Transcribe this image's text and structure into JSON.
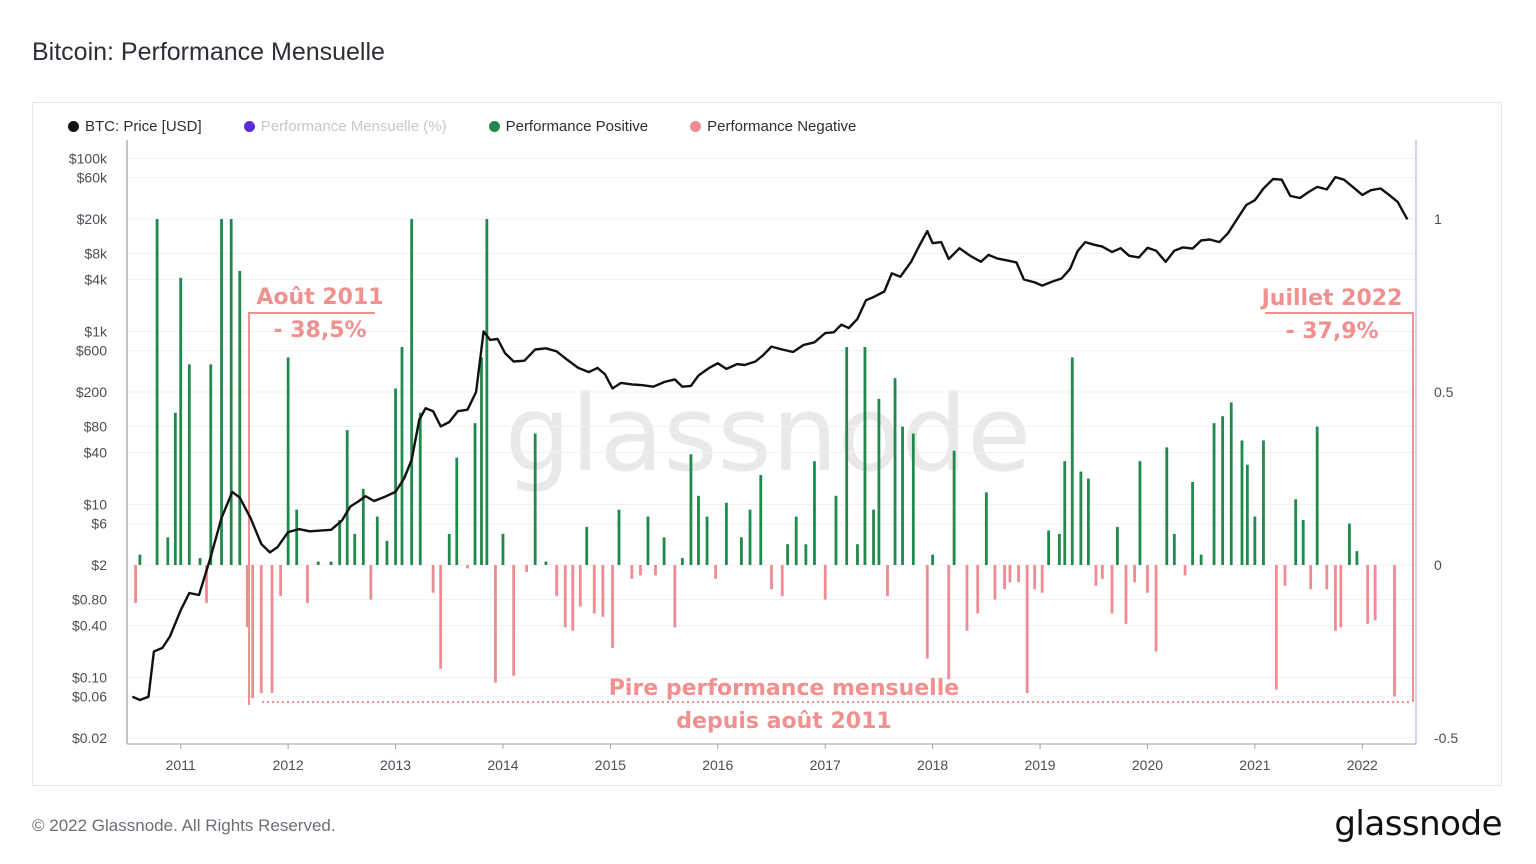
{
  "title": "Bitcoin: Performance Mensuelle",
  "legend": [
    {
      "label": "BTC: Price [USD]",
      "color": "#111111",
      "faded": false
    },
    {
      "label": "Performance Mensuelle (%)",
      "color": "#5b2bd8",
      "faded": true
    },
    {
      "label": "Performance Positive",
      "color": "#1f8a4c",
      "faded": false
    },
    {
      "label": "Performance Negative",
      "color": "#f08a93",
      "faded": false
    }
  ],
  "watermark": "glassnode",
  "footer": {
    "copyright": "© 2022 Glassnode. All Rights Reserved.",
    "logo": "glassnode"
  },
  "annotations": {
    "left_title": "Août 2011",
    "left_value": "- 38,5%",
    "right_title": "Juillet 2022",
    "right_value": "- 37,9%",
    "bottom_line1": "Pire performance mensuelle",
    "bottom_line2": "depuis août  2011",
    "color": "#f0908f"
  },
  "chart_data": {
    "type": "bar+line",
    "x_start": 2010.5,
    "x_end": 2022.5,
    "x_ticks": [
      "2011",
      "2012",
      "2013",
      "2014",
      "2015",
      "2016",
      "2017",
      "2018",
      "2019",
      "2020",
      "2021",
      "2022"
    ],
    "y_left_ticks": [
      "$100k",
      "$60k",
      "$20k",
      "$8k",
      "$4k",
      "$1k",
      "$600",
      "$200",
      "$80",
      "$40",
      "$10",
      "$6",
      "$2",
      "$0.80",
      "$0.40",
      "$0.10",
      "$0.06",
      "$0.02"
    ],
    "y_left_scale": "log",
    "y_left_range": [
      0.015,
      120000
    ],
    "y_right_ticks": [
      "1",
      "0.5",
      "0",
      "-0.5"
    ],
    "y_right_range": [
      -0.5,
      1.0
    ],
    "colors": {
      "price": "#111111",
      "positive": "#1f8a4c",
      "negative": "#f08a93"
    },
    "performance": [
      {
        "x": 2010.58,
        "v": -0.11
      },
      {
        "x": 2010.62,
        "v": 0.03
      },
      {
        "x": 2010.78,
        "v": 1.0
      },
      {
        "x": 2010.88,
        "v": 0.08
      },
      {
        "x": 2010.95,
        "v": 0.44
      },
      {
        "x": 2011.0,
        "v": 0.83
      },
      {
        "x": 2011.08,
        "v": 0.58
      },
      {
        "x": 2011.18,
        "v": 0.02
      },
      {
        "x": 2011.24,
        "v": -0.11
      },
      {
        "x": 2011.28,
        "v": 0.58
      },
      {
        "x": 2011.38,
        "v": 1.0
      },
      {
        "x": 2011.47,
        "v": 1.0
      },
      {
        "x": 2011.55,
        "v": 0.85
      },
      {
        "x": 2011.62,
        "v": -0.18
      },
      {
        "x": 2011.67,
        "v": -0.385
      },
      {
        "x": 2011.75,
        "v": -0.37
      },
      {
        "x": 2011.85,
        "v": -0.37
      },
      {
        "x": 2011.93,
        "v": -0.09
      },
      {
        "x": 2012.0,
        "v": 0.6
      },
      {
        "x": 2012.08,
        "v": 0.16
      },
      {
        "x": 2012.18,
        "v": -0.11
      },
      {
        "x": 2012.28,
        "v": 0.01
      },
      {
        "x": 2012.4,
        "v": 0.01
      },
      {
        "x": 2012.48,
        "v": 0.13
      },
      {
        "x": 2012.55,
        "v": 0.39
      },
      {
        "x": 2012.62,
        "v": 0.09
      },
      {
        "x": 2012.7,
        "v": 0.22
      },
      {
        "x": 2012.77,
        "v": -0.1
      },
      {
        "x": 2012.83,
        "v": 0.14
      },
      {
        "x": 2012.92,
        "v": 0.07
      },
      {
        "x": 2013.0,
        "v": 0.51
      },
      {
        "x": 2013.06,
        "v": 0.63
      },
      {
        "x": 2013.15,
        "v": 1.0
      },
      {
        "x": 2013.23,
        "v": 0.44
      },
      {
        "x": 2013.35,
        "v": -0.08
      },
      {
        "x": 2013.42,
        "v": -0.3
      },
      {
        "x": 2013.5,
        "v": 0.09
      },
      {
        "x": 2013.57,
        "v": 0.31
      },
      {
        "x": 2013.67,
        "v": -0.01
      },
      {
        "x": 2013.74,
        "v": 0.41
      },
      {
        "x": 2013.8,
        "v": 0.6
      },
      {
        "x": 2013.85,
        "v": 1.0
      },
      {
        "x": 2013.93,
        "v": -0.34
      },
      {
        "x": 2014.0,
        "v": 0.09
      },
      {
        "x": 2014.1,
        "v": -0.32
      },
      {
        "x": 2014.22,
        "v": -0.02
      },
      {
        "x": 2014.3,
        "v": 0.38
      },
      {
        "x": 2014.4,
        "v": 0.01
      },
      {
        "x": 2014.5,
        "v": -0.09
      },
      {
        "x": 2014.58,
        "v": -0.18
      },
      {
        "x": 2014.65,
        "v": -0.19
      },
      {
        "x": 2014.72,
        "v": -0.12
      },
      {
        "x": 2014.78,
        "v": 0.11
      },
      {
        "x": 2014.85,
        "v": -0.14
      },
      {
        "x": 2014.93,
        "v": -0.15
      },
      {
        "x": 2015.02,
        "v": -0.24
      },
      {
        "x": 2015.08,
        "v": 0.16
      },
      {
        "x": 2015.2,
        "v": -0.04
      },
      {
        "x": 2015.28,
        "v": -0.03
      },
      {
        "x": 2015.35,
        "v": 0.14
      },
      {
        "x": 2015.42,
        "v": -0.03
      },
      {
        "x": 2015.5,
        "v": 0.08
      },
      {
        "x": 2015.6,
        "v": -0.18
      },
      {
        "x": 2015.67,
        "v": 0.02
      },
      {
        "x": 2015.75,
        "v": 0.32
      },
      {
        "x": 2015.82,
        "v": 0.2
      },
      {
        "x": 2015.9,
        "v": 0.14
      },
      {
        "x": 2015.98,
        "v": -0.04
      },
      {
        "x": 2016.08,
        "v": 0.18
      },
      {
        "x": 2016.22,
        "v": 0.08
      },
      {
        "x": 2016.3,
        "v": 0.16
      },
      {
        "x": 2016.4,
        "v": 0.26
      },
      {
        "x": 2016.5,
        "v": -0.07
      },
      {
        "x": 2016.6,
        "v": -0.09
      },
      {
        "x": 2016.65,
        "v": 0.06
      },
      {
        "x": 2016.73,
        "v": 0.14
      },
      {
        "x": 2016.82,
        "v": 0.06
      },
      {
        "x": 2016.9,
        "v": 0.3
      },
      {
        "x": 2017.0,
        "v": -0.1
      },
      {
        "x": 2017.1,
        "v": 0.2
      },
      {
        "x": 2017.2,
        "v": 0.63
      },
      {
        "x": 2017.3,
        "v": 0.06
      },
      {
        "x": 2017.37,
        "v": 0.63
      },
      {
        "x": 2017.45,
        "v": 0.16
      },
      {
        "x": 2017.5,
        "v": 0.48
      },
      {
        "x": 2017.58,
        "v": -0.09
      },
      {
        "x": 2017.65,
        "v": 0.54
      },
      {
        "x": 2017.72,
        "v": 0.4
      },
      {
        "x": 2017.82,
        "v": 0.38
      },
      {
        "x": 2017.95,
        "v": -0.27
      },
      {
        "x": 2018.0,
        "v": 0.03
      },
      {
        "x": 2018.15,
        "v": -0.33
      },
      {
        "x": 2018.2,
        "v": 0.33
      },
      {
        "x": 2018.32,
        "v": -0.19
      },
      {
        "x": 2018.42,
        "v": -0.14
      },
      {
        "x": 2018.5,
        "v": 0.21
      },
      {
        "x": 2018.58,
        "v": -0.1
      },
      {
        "x": 2018.67,
        "v": -0.07
      },
      {
        "x": 2018.72,
        "v": -0.05
      },
      {
        "x": 2018.8,
        "v": -0.05
      },
      {
        "x": 2018.88,
        "v": -0.37
      },
      {
        "x": 2018.95,
        "v": -0.07
      },
      {
        "x": 2019.02,
        "v": -0.08
      },
      {
        "x": 2019.08,
        "v": 0.1
      },
      {
        "x": 2019.18,
        "v": 0.09
      },
      {
        "x": 2019.23,
        "v": 0.3
      },
      {
        "x": 2019.3,
        "v": 0.6
      },
      {
        "x": 2019.38,
        "v": 0.27
      },
      {
        "x": 2019.45,
        "v": 0.25
      },
      {
        "x": 2019.52,
        "v": -0.06
      },
      {
        "x": 2019.58,
        "v": -0.04
      },
      {
        "x": 2019.67,
        "v": -0.14
      },
      {
        "x": 2019.72,
        "v": 0.11
      },
      {
        "x": 2019.8,
        "v": -0.17
      },
      {
        "x": 2019.88,
        "v": -0.05
      },
      {
        "x": 2019.93,
        "v": 0.3
      },
      {
        "x": 2020.0,
        "v": -0.08
      },
      {
        "x": 2020.08,
        "v": -0.25
      },
      {
        "x": 2020.18,
        "v": 0.34
      },
      {
        "x": 2020.25,
        "v": 0.09
      },
      {
        "x": 2020.35,
        "v": -0.03
      },
      {
        "x": 2020.42,
        "v": 0.24
      },
      {
        "x": 2020.5,
        "v": 0.03
      },
      {
        "x": 2020.62,
        "v": 0.41
      },
      {
        "x": 2020.7,
        "v": 0.43
      },
      {
        "x": 2020.78,
        "v": 0.47
      },
      {
        "x": 2020.88,
        "v": 0.36
      },
      {
        "x": 2020.93,
        "v": 0.29
      },
      {
        "x": 2021.0,
        "v": 0.14
      },
      {
        "x": 2021.08,
        "v": 0.36
      },
      {
        "x": 2021.2,
        "v": -0.36
      },
      {
        "x": 2021.28,
        "v": -0.06
      },
      {
        "x": 2021.38,
        "v": 0.19
      },
      {
        "x": 2021.45,
        "v": 0.13
      },
      {
        "x": 2021.52,
        "v": -0.07
      },
      {
        "x": 2021.58,
        "v": 0.4
      },
      {
        "x": 2021.67,
        "v": -0.07
      },
      {
        "x": 2021.75,
        "v": -0.19
      },
      {
        "x": 2021.8,
        "v": -0.18
      },
      {
        "x": 2021.88,
        "v": 0.12
      },
      {
        "x": 2021.95,
        "v": 0.04
      },
      {
        "x": 2022.05,
        "v": -0.17
      },
      {
        "x": 2022.12,
        "v": -0.16
      },
      {
        "x": 2022.3,
        "v": -0.38
      }
    ],
    "price": [
      {
        "x": 2010.55,
        "y": 0.06
      },
      {
        "x": 2010.62,
        "y": 0.055
      },
      {
        "x": 2010.7,
        "y": 0.06
      },
      {
        "x": 2010.75,
        "y": 0.2
      },
      {
        "x": 2010.83,
        "y": 0.22
      },
      {
        "x": 2010.9,
        "y": 0.3
      },
      {
        "x": 2011.0,
        "y": 0.6
      },
      {
        "x": 2011.08,
        "y": 0.95
      },
      {
        "x": 2011.17,
        "y": 0.9
      },
      {
        "x": 2011.28,
        "y": 2.5
      },
      {
        "x": 2011.38,
        "y": 7
      },
      {
        "x": 2011.48,
        "y": 14
      },
      {
        "x": 2011.55,
        "y": 12
      },
      {
        "x": 2011.65,
        "y": 7
      },
      {
        "x": 2011.75,
        "y": 3.5
      },
      {
        "x": 2011.83,
        "y": 2.8
      },
      {
        "x": 2011.9,
        "y": 3.2
      },
      {
        "x": 2012.0,
        "y": 4.8
      },
      {
        "x": 2012.1,
        "y": 5.2
      },
      {
        "x": 2012.2,
        "y": 4.9
      },
      {
        "x": 2012.3,
        "y": 5
      },
      {
        "x": 2012.4,
        "y": 5.1
      },
      {
        "x": 2012.5,
        "y": 6.5
      },
      {
        "x": 2012.58,
        "y": 9.5
      },
      {
        "x": 2012.66,
        "y": 11
      },
      {
        "x": 2012.72,
        "y": 12.5
      },
      {
        "x": 2012.8,
        "y": 11
      },
      {
        "x": 2012.9,
        "y": 12.3
      },
      {
        "x": 2013.0,
        "y": 14
      },
      {
        "x": 2013.08,
        "y": 20
      },
      {
        "x": 2013.15,
        "y": 33
      },
      {
        "x": 2013.22,
        "y": 95
      },
      {
        "x": 2013.28,
        "y": 130
      },
      {
        "x": 2013.35,
        "y": 120
      },
      {
        "x": 2013.42,
        "y": 80
      },
      {
        "x": 2013.5,
        "y": 90
      },
      {
        "x": 2013.58,
        "y": 120
      },
      {
        "x": 2013.67,
        "y": 125
      },
      {
        "x": 2013.75,
        "y": 200
      },
      {
        "x": 2013.82,
        "y": 1000
      },
      {
        "x": 2013.88,
        "y": 800
      },
      {
        "x": 2013.95,
        "y": 820
      },
      {
        "x": 2014.02,
        "y": 560
      },
      {
        "x": 2014.1,
        "y": 450
      },
      {
        "x": 2014.2,
        "y": 460
      },
      {
        "x": 2014.3,
        "y": 620
      },
      {
        "x": 2014.4,
        "y": 640
      },
      {
        "x": 2014.5,
        "y": 590
      },
      {
        "x": 2014.6,
        "y": 470
      },
      {
        "x": 2014.7,
        "y": 380
      },
      {
        "x": 2014.8,
        "y": 340
      },
      {
        "x": 2014.88,
        "y": 380
      },
      {
        "x": 2014.95,
        "y": 320
      },
      {
        "x": 2015.02,
        "y": 220
      },
      {
        "x": 2015.1,
        "y": 255
      },
      {
        "x": 2015.2,
        "y": 245
      },
      {
        "x": 2015.3,
        "y": 240
      },
      {
        "x": 2015.4,
        "y": 230
      },
      {
        "x": 2015.5,
        "y": 260
      },
      {
        "x": 2015.6,
        "y": 280
      },
      {
        "x": 2015.67,
        "y": 230
      },
      {
        "x": 2015.75,
        "y": 235
      },
      {
        "x": 2015.82,
        "y": 310
      },
      {
        "x": 2015.92,
        "y": 380
      },
      {
        "x": 2016.0,
        "y": 430
      },
      {
        "x": 2016.08,
        "y": 370
      },
      {
        "x": 2016.18,
        "y": 420
      },
      {
        "x": 2016.25,
        "y": 410
      },
      {
        "x": 2016.35,
        "y": 450
      },
      {
        "x": 2016.42,
        "y": 530
      },
      {
        "x": 2016.5,
        "y": 670
      },
      {
        "x": 2016.6,
        "y": 620
      },
      {
        "x": 2016.7,
        "y": 580
      },
      {
        "x": 2016.8,
        "y": 700
      },
      {
        "x": 2016.9,
        "y": 750
      },
      {
        "x": 2017.0,
        "y": 960
      },
      {
        "x": 2017.08,
        "y": 980
      },
      {
        "x": 2017.15,
        "y": 1200
      },
      {
        "x": 2017.22,
        "y": 1100
      },
      {
        "x": 2017.3,
        "y": 1400
      },
      {
        "x": 2017.38,
        "y": 2300
      },
      {
        "x": 2017.45,
        "y": 2500
      },
      {
        "x": 2017.55,
        "y": 2900
      },
      {
        "x": 2017.62,
        "y": 4700
      },
      {
        "x": 2017.7,
        "y": 4300
      },
      {
        "x": 2017.8,
        "y": 6400
      },
      {
        "x": 2017.88,
        "y": 10000
      },
      {
        "x": 2017.95,
        "y": 14500
      },
      {
        "x": 2018.0,
        "y": 10500
      },
      {
        "x": 2018.08,
        "y": 10800
      },
      {
        "x": 2018.15,
        "y": 6900
      },
      {
        "x": 2018.25,
        "y": 9200
      },
      {
        "x": 2018.35,
        "y": 7500
      },
      {
        "x": 2018.45,
        "y": 6400
      },
      {
        "x": 2018.52,
        "y": 7700
      },
      {
        "x": 2018.6,
        "y": 7000
      },
      {
        "x": 2018.7,
        "y": 6600
      },
      {
        "x": 2018.78,
        "y": 6300
      },
      {
        "x": 2018.85,
        "y": 4000
      },
      {
        "x": 2018.95,
        "y": 3700
      },
      {
        "x": 2019.02,
        "y": 3400
      },
      {
        "x": 2019.12,
        "y": 3800
      },
      {
        "x": 2019.2,
        "y": 4100
      },
      {
        "x": 2019.28,
        "y": 5300
      },
      {
        "x": 2019.35,
        "y": 8500
      },
      {
        "x": 2019.42,
        "y": 10800
      },
      {
        "x": 2019.5,
        "y": 10100
      },
      {
        "x": 2019.58,
        "y": 9600
      },
      {
        "x": 2019.67,
        "y": 8300
      },
      {
        "x": 2019.75,
        "y": 9200
      },
      {
        "x": 2019.83,
        "y": 7500
      },
      {
        "x": 2019.92,
        "y": 7200
      },
      {
        "x": 2020.0,
        "y": 9300
      },
      {
        "x": 2020.08,
        "y": 8600
      },
      {
        "x": 2020.17,
        "y": 6400
      },
      {
        "x": 2020.25,
        "y": 8600
      },
      {
        "x": 2020.33,
        "y": 9400
      },
      {
        "x": 2020.42,
        "y": 9100
      },
      {
        "x": 2020.5,
        "y": 11300
      },
      {
        "x": 2020.58,
        "y": 11600
      },
      {
        "x": 2020.67,
        "y": 10800
      },
      {
        "x": 2020.75,
        "y": 13700
      },
      {
        "x": 2020.83,
        "y": 19600
      },
      {
        "x": 2020.92,
        "y": 29000
      },
      {
        "x": 2021.0,
        "y": 33000
      },
      {
        "x": 2021.08,
        "y": 45000
      },
      {
        "x": 2021.17,
        "y": 58000
      },
      {
        "x": 2021.25,
        "y": 57000
      },
      {
        "x": 2021.33,
        "y": 37000
      },
      {
        "x": 2021.42,
        "y": 35000
      },
      {
        "x": 2021.5,
        "y": 41000
      },
      {
        "x": 2021.58,
        "y": 47000
      },
      {
        "x": 2021.67,
        "y": 44000
      },
      {
        "x": 2021.75,
        "y": 61000
      },
      {
        "x": 2021.83,
        "y": 57000
      },
      {
        "x": 2021.92,
        "y": 46000
      },
      {
        "x": 2022.0,
        "y": 38000
      },
      {
        "x": 2022.08,
        "y": 43000
      },
      {
        "x": 2022.17,
        "y": 45000
      },
      {
        "x": 2022.25,
        "y": 38000
      },
      {
        "x": 2022.33,
        "y": 31500
      },
      {
        "x": 2022.42,
        "y": 19800
      }
    ]
  }
}
